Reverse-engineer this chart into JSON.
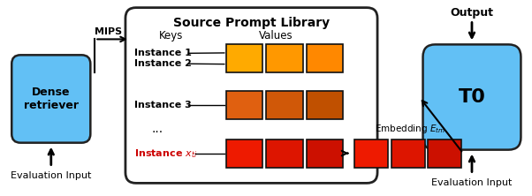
{
  "title": "Source Prompt Library",
  "dense_retriever_label": "Dense\nretriever",
  "dense_retriever_color": "#62C0F5",
  "t0_label": "T0",
  "t0_color": "#62C0F5",
  "mips_label": "MIPS",
  "eval_input_left": "Evaluation Input",
  "eval_input_right": "Evaluation Input",
  "output_label": "Output",
  "embedding_label": "Embedding $E_{tm}$",
  "keys_label": "Keys",
  "values_label": "Values",
  "instance_labels": [
    "Instance 1",
    "Instance 2",
    "Instance 3",
    "...",
    "Instance $x_{ti}$"
  ],
  "row1_colors": [
    "#FFAA00",
    "#FF9800",
    "#FF8800"
  ],
  "row2_colors": [
    "#FFAA00",
    "#FF9800",
    "#FF8800"
  ],
  "row3_colors": [
    "#E06010",
    "#D05808",
    "#C05000"
  ],
  "row5_colors": [
    "#EE1A00",
    "#DD1500",
    "#CC1000"
  ],
  "embedding_colors": [
    "#EE1A00",
    "#DD1500",
    "#CC1000"
  ],
  "background_color": "#ffffff"
}
